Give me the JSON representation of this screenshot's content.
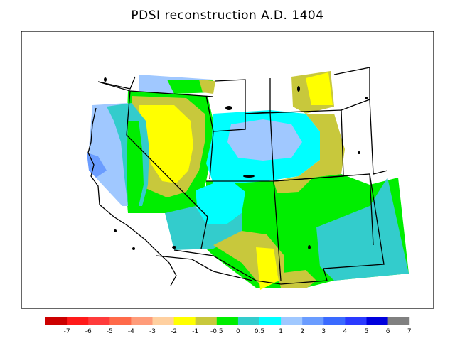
{
  "map": {
    "title": "PDSI reconstruction A.D. 1404"
  },
  "legend": {
    "colors": [
      "#cc0000",
      "#ff1a1a",
      "#ff3b3b",
      "#ff6a4a",
      "#ff9c7a",
      "#ffd0a0",
      "#ffff00",
      "#c8c83c",
      "#00ee00",
      "#33cccc",
      "#00ffff",
      "#a0c8ff",
      "#6a9cff",
      "#3a6aff",
      "#2a3aff",
      "#0000dd",
      "#808080"
    ],
    "labels": [
      "-7",
      "-6",
      "-5",
      "-4",
      "-3",
      "-2",
      "-1",
      "-0.5",
      "0",
      "0.5",
      "1",
      "2",
      "3",
      "4",
      "5",
      "6",
      "7"
    ]
  }
}
